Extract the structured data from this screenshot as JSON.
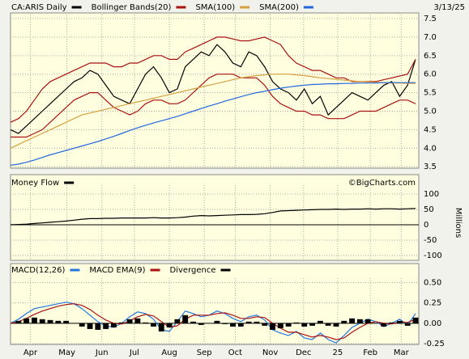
{
  "header": {
    "date": "3/13/25"
  },
  "chart_data": [
    {
      "type": "line",
      "xlim": [
        0,
        51
      ],
      "ylim": [
        3.46,
        7.61
      ],
      "yticks": [
        3.5,
        {
          "value": 4,
          "label": "4.0"
        },
        4.5,
        {
          "value": 5,
          "label": "5.0"
        },
        5.5,
        {
          "value": 6,
          "label": "6.0"
        },
        6.5,
        {
          "value": 7,
          "label": "7.0"
        },
        7.5
      ],
      "grid": true,
      "series": [
        {
          "name": "CA:ARIS Daily",
          "color": "#000000",
          "values": [
            4.5,
            4.4,
            4.6,
            4.8,
            5.0,
            5.2,
            5.4,
            5.6,
            5.8,
            5.9,
            6.1,
            6.0,
            5.7,
            5.4,
            5.3,
            5.2,
            5.6,
            6.0,
            6.2,
            5.9,
            5.5,
            5.6,
            6.2,
            6.4,
            6.6,
            6.5,
            6.8,
            6.6,
            6.3,
            6.2,
            6.6,
            6.5,
            6.2,
            5.8,
            5.6,
            5.5,
            5.3,
            5.6,
            5.2,
            5.4,
            4.9,
            5.1,
            5.3,
            5.5,
            5.4,
            5.3,
            5.5,
            5.7,
            5.8,
            5.4,
            5.7,
            6.4
          ]
        },
        {
          "name": "Bollinger Bands(20)",
          "color": "#aa1111",
          "values": [
            4.7,
            4.8,
            5.0,
            5.3,
            5.6,
            5.8,
            5.9,
            6.0,
            6.1,
            6.2,
            6.3,
            6.3,
            6.3,
            6.2,
            6.2,
            6.3,
            6.3,
            6.4,
            6.5,
            6.5,
            6.4,
            6.4,
            6.6,
            6.7,
            6.8,
            6.9,
            7.0,
            7.0,
            6.95,
            6.9,
            6.9,
            6.95,
            7.0,
            6.9,
            6.8,
            6.5,
            6.3,
            6.2,
            6.1,
            6.1,
            6.0,
            5.9,
            5.9,
            5.8,
            5.8,
            5.8,
            5.8,
            5.85,
            5.9,
            5.95,
            6.0,
            6.4
          ],
          "lower": [
            4.3,
            4.3,
            4.3,
            4.4,
            4.5,
            4.7,
            4.9,
            5.1,
            5.3,
            5.4,
            5.5,
            5.5,
            5.3,
            5.1,
            5.0,
            4.9,
            5.0,
            5.2,
            5.3,
            5.3,
            5.2,
            5.2,
            5.3,
            5.5,
            5.7,
            5.9,
            6.0,
            6.0,
            6.0,
            5.9,
            5.9,
            5.9,
            5.7,
            5.4,
            5.2,
            5.1,
            5.0,
            5.0,
            4.9,
            4.9,
            4.8,
            4.8,
            4.8,
            4.9,
            5.0,
            5.0,
            5.0,
            5.1,
            5.2,
            5.3,
            5.3,
            5.2
          ]
        },
        {
          "name": "SMA(100)",
          "color": "#d4a040",
          "values": [
            4.0,
            4.1,
            4.2,
            4.3,
            4.4,
            4.5,
            4.6,
            4.7,
            4.8,
            4.9,
            4.95,
            5.0,
            5.05,
            5.1,
            5.15,
            5.2,
            5.25,
            5.3,
            5.35,
            5.4,
            5.45,
            5.5,
            5.55,
            5.6,
            5.65,
            5.7,
            5.75,
            5.8,
            5.85,
            5.9,
            5.93,
            5.96,
            5.98,
            6.0,
            6.0,
            6.0,
            5.98,
            5.96,
            5.93,
            5.9,
            5.88,
            5.86,
            5.84,
            5.82,
            5.8,
            5.79,
            5.78,
            5.77,
            5.76,
            5.76,
            5.75,
            5.75
          ]
        },
        {
          "name": "SMA(200)",
          "color": "#2266dd",
          "values": [
            3.54,
            3.57,
            3.62,
            3.68,
            3.75,
            3.82,
            3.88,
            3.94,
            4.0,
            4.06,
            4.12,
            4.18,
            4.25,
            4.32,
            4.4,
            4.48,
            4.55,
            4.62,
            4.68,
            4.74,
            4.8,
            4.86,
            4.93,
            5.0,
            5.07,
            5.14,
            5.2,
            5.27,
            5.33,
            5.39,
            5.45,
            5.5,
            5.54,
            5.58,
            5.62,
            5.65,
            5.68,
            5.7,
            5.72,
            5.73,
            5.74,
            5.74,
            5.75,
            5.75,
            5.76,
            5.76,
            5.76,
            5.77,
            5.77,
            5.77,
            5.77,
            5.77
          ]
        }
      ]
    },
    {
      "type": "line",
      "xlim": [
        0,
        51
      ],
      "ylim": [
        -116,
        129
      ],
      "yticks": [
        -100,
        -50,
        0,
        50,
        100
      ],
      "grid": true,
      "annotation": "©BigCharts.com",
      "y_label": "Millions",
      "series": [
        {
          "name": "Money Flow",
          "color": "#000000",
          "values": [
            0,
            1,
            2,
            4,
            6,
            8,
            10,
            12,
            15,
            18,
            20,
            20,
            21,
            21,
            22,
            22,
            22,
            22,
            23,
            22,
            22,
            23,
            25,
            28,
            30,
            29,
            30,
            31,
            32,
            33,
            33,
            34,
            36,
            40,
            45,
            46,
            47,
            48,
            49,
            50,
            50,
            51,
            50,
            51,
            51,
            52,
            51,
            52,
            52,
            51,
            52,
            53
          ]
        }
      ]
    },
    {
      "type": "line",
      "xlim": [
        0,
        51
      ],
      "ylim": [
        -0.26,
        0.555
      ],
      "yticks": [
        {
          "value": -0.25,
          "label": "-0.25"
        },
        {
          "value": 0,
          "label": "0.00"
        },
        {
          "value": 0.25,
          "label": "0.25"
        },
        {
          "value": 0.5,
          "label": "0.50"
        }
      ],
      "grid": true,
      "xticks": [
        {
          "value": 2.5,
          "label": "Apr"
        },
        {
          "value": 7.1,
          "label": "May"
        },
        {
          "value": 11.5,
          "label": "Jun"
        },
        {
          "value": 15.6,
          "label": "Jul"
        },
        {
          "value": 20,
          "label": "Aug"
        },
        {
          "value": 24.4,
          "label": "Sep"
        },
        {
          "value": 28.3,
          "label": "Oct"
        },
        {
          "value": 32.7,
          "label": "Nov"
        },
        {
          "value": 36.9,
          "label": "Dec"
        },
        {
          "value": 41.2,
          "label": "25"
        },
        {
          "value": 45.3,
          "label": "Feb"
        },
        {
          "value": 49.2,
          "label": "Mar"
        }
      ],
      "series": [
        {
          "name": "MACD(12,26)",
          "color": "#2277dd",
          "values": [
            0.0,
            0.05,
            0.12,
            0.18,
            0.2,
            0.22,
            0.24,
            0.26,
            0.24,
            0.18,
            0.1,
            0.02,
            -0.03,
            -0.05,
            0.0,
            0.08,
            0.14,
            0.12,
            0.05,
            -0.08,
            -0.1,
            0.02,
            0.15,
            0.12,
            0.08,
            0.1,
            0.15,
            0.12,
            0.06,
            0.02,
            0.08,
            0.1,
            0.04,
            -0.08,
            -0.12,
            -0.15,
            -0.1,
            -0.18,
            -0.2,
            -0.12,
            -0.2,
            -0.24,
            -0.15,
            -0.05,
            0.0,
            0.05,
            0.02,
            -0.04,
            0.0,
            0.05,
            -0.02,
            0.12
          ]
        },
        {
          "name": "MACD EMA(9)",
          "color": "#aa1111",
          "values": [
            0.0,
            0.02,
            0.06,
            0.11,
            0.15,
            0.18,
            0.21,
            0.23,
            0.24,
            0.22,
            0.17,
            0.1,
            0.04,
            0.0,
            -0.01,
            0.03,
            0.08,
            0.11,
            0.09,
            0.02,
            -0.05,
            -0.03,
            0.05,
            0.1,
            0.1,
            0.1,
            0.12,
            0.13,
            0.1,
            0.06,
            0.06,
            0.08,
            0.07,
            0.0,
            -0.06,
            -0.11,
            -0.11,
            -0.14,
            -0.17,
            -0.15,
            -0.17,
            -0.2,
            -0.18,
            -0.11,
            -0.05,
            0.0,
            0.02,
            0.0,
            -0.01,
            0.02,
            0.01,
            0.05
          ]
        },
        {
          "name": "Divergence",
          "color": "#000000",
          "style": "bar",
          "values": [
            0,
            0.03,
            0.06,
            0.07,
            0.05,
            0.04,
            0.03,
            0.03,
            0,
            -0.04,
            -0.07,
            -0.08,
            -0.07,
            -0.05,
            0.01,
            0.05,
            0.06,
            0.01,
            -0.04,
            -0.1,
            -0.05,
            0.05,
            0.1,
            0.02,
            -0.02,
            0,
            0.03,
            -0.01,
            -0.04,
            -0.04,
            0.02,
            0.02,
            -0.03,
            -0.08,
            -0.06,
            -0.04,
            0.01,
            -0.04,
            -0.03,
            0.03,
            -0.03,
            -0.04,
            0.03,
            0.06,
            0.05,
            0.05,
            0,
            -0.04,
            0.01,
            0.03,
            -0.03,
            0.07
          ]
        }
      ]
    }
  ]
}
